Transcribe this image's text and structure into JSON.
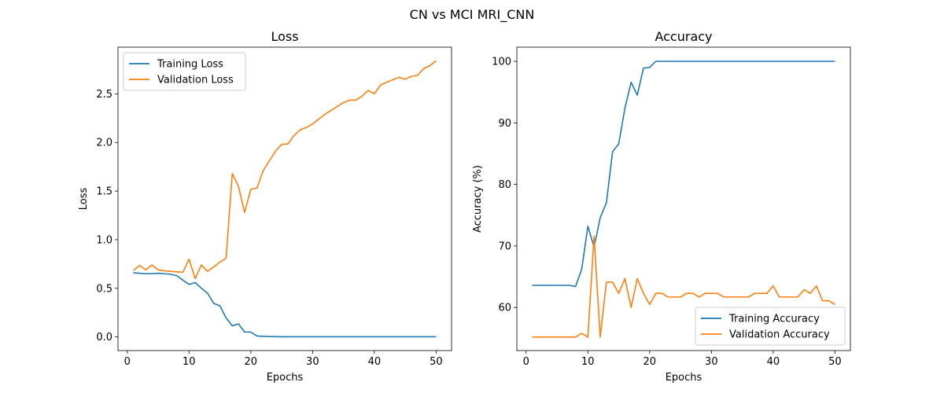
{
  "figure": {
    "title": "CN vs MCI MRI_CNN"
  },
  "chart_data": [
    {
      "type": "line",
      "title": "Loss",
      "xlabel": "Epochs",
      "ylabel": "Loss",
      "xlim": [
        -1.5,
        52.5
      ],
      "ylim": [
        -0.14,
        2.98
      ],
      "xticks": [
        0,
        10,
        20,
        30,
        40,
        50
      ],
      "yticks": [
        0.0,
        0.5,
        1.0,
        1.5,
        2.0,
        2.5
      ],
      "ytick_labels": [
        "0.0",
        "0.5",
        "1.0",
        "1.5",
        "2.0",
        "2.5"
      ],
      "legend_position": "upper-left",
      "grid": false,
      "x": [
        1,
        2,
        3,
        4,
        5,
        6,
        7,
        8,
        9,
        10,
        11,
        12,
        13,
        14,
        15,
        16,
        17,
        18,
        19,
        20,
        21,
        22,
        23,
        24,
        25,
        26,
        27,
        28,
        29,
        30,
        31,
        32,
        33,
        34,
        35,
        36,
        37,
        38,
        39,
        40,
        41,
        42,
        43,
        44,
        45,
        46,
        47,
        48,
        49,
        50
      ],
      "series": [
        {
          "name": "Training Loss",
          "color": "#1f77b4",
          "values": [
            0.66,
            0.655,
            0.65,
            0.65,
            0.655,
            0.65,
            0.645,
            0.63,
            0.585,
            0.54,
            0.56,
            0.5,
            0.45,
            0.345,
            0.32,
            0.195,
            0.115,
            0.135,
            0.05,
            0.05,
            0.01,
            0.006,
            0.004,
            0.003,
            0.002,
            0.002,
            0.002,
            0.002,
            0.002,
            0.002,
            0.002,
            0.002,
            0.002,
            0.002,
            0.002,
            0.002,
            0.002,
            0.002,
            0.002,
            0.002,
            0.002,
            0.002,
            0.002,
            0.002,
            0.002,
            0.002,
            0.002,
            0.002,
            0.002,
            0.002
          ]
        },
        {
          "name": "Validation Loss",
          "color": "#ff7f0e",
          "values": [
            0.685,
            0.735,
            0.69,
            0.74,
            0.69,
            0.68,
            0.675,
            0.67,
            0.665,
            0.8,
            0.6,
            0.74,
            0.675,
            0.72,
            0.77,
            0.81,
            1.68,
            1.55,
            1.28,
            1.52,
            1.53,
            1.71,
            1.81,
            1.91,
            1.98,
            1.985,
            2.07,
            2.13,
            2.155,
            2.19,
            2.24,
            2.29,
            2.33,
            2.37,
            2.41,
            2.435,
            2.435,
            2.475,
            2.535,
            2.5,
            2.59,
            2.62,
            2.645,
            2.67,
            2.65,
            2.68,
            2.69,
            2.76,
            2.79,
            2.84
          ]
        }
      ]
    },
    {
      "type": "line",
      "title": "Accuracy",
      "xlabel": "Epochs",
      "ylabel": "Accuracy (%)",
      "xlim": [
        -1.5,
        52.5
      ],
      "ylim": [
        53.0,
        102.3
      ],
      "xticks": [
        0,
        10,
        20,
        30,
        40,
        50
      ],
      "yticks": [
        60,
        70,
        80,
        90,
        100
      ],
      "ytick_labels": [
        "60",
        "70",
        "80",
        "90",
        "100"
      ],
      "legend_position": "lower-right",
      "grid": false,
      "x": [
        1,
        2,
        3,
        4,
        5,
        6,
        7,
        8,
        9,
        10,
        11,
        12,
        13,
        14,
        15,
        16,
        17,
        18,
        19,
        20,
        21,
        22,
        23,
        24,
        25,
        26,
        27,
        28,
        29,
        30,
        31,
        32,
        33,
        34,
        35,
        36,
        37,
        38,
        39,
        40,
        41,
        42,
        43,
        44,
        45,
        46,
        47,
        48,
        49,
        50
      ],
      "series": [
        {
          "name": "Training Accuracy",
          "color": "#1f77b4",
          "values": [
            63.6,
            63.6,
            63.6,
            63.6,
            63.6,
            63.6,
            63.6,
            63.4,
            66.2,
            73.2,
            69.8,
            74.6,
            77.0,
            85.3,
            86.6,
            92.4,
            96.6,
            94.5,
            98.9,
            99.0,
            100,
            100,
            100,
            100,
            100,
            100,
            100,
            100,
            100,
            100,
            100,
            100,
            100,
            100,
            100,
            100,
            100,
            100,
            100,
            100,
            100,
            100,
            100,
            100,
            100,
            100,
            100,
            100,
            100,
            100
          ]
        },
        {
          "name": "Validation Accuracy",
          "color": "#ff7f0e",
          "values": [
            55.2,
            55.2,
            55.2,
            55.2,
            55.2,
            55.2,
            55.2,
            55.2,
            55.8,
            55.2,
            71.6,
            55.2,
            64.1,
            64.1,
            62.3,
            64.7,
            60.0,
            64.7,
            62.3,
            60.5,
            62.3,
            62.3,
            61.7,
            61.7,
            61.7,
            62.3,
            62.3,
            61.7,
            62.3,
            62.3,
            62.3,
            61.7,
            61.7,
            61.7,
            61.7,
            61.7,
            62.3,
            62.3,
            62.3,
            63.5,
            61.7,
            61.7,
            61.7,
            61.7,
            62.9,
            62.3,
            63.5,
            61.1,
            61.1,
            60.5
          ]
        }
      ]
    }
  ]
}
